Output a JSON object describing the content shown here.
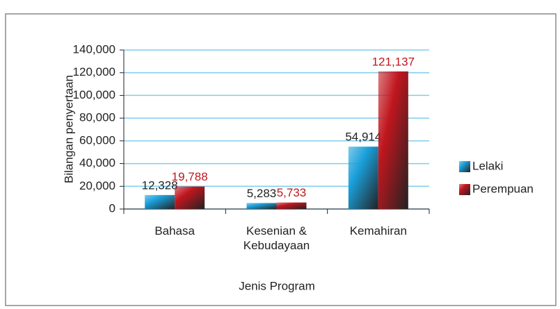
{
  "chart_data": {
    "type": "bar",
    "categories": [
      "Bahasa",
      "Kesenian & Kebudayaan",
      "Kemahiran"
    ],
    "series": [
      {
        "name": "Lelaki",
        "color": "#1a9fd9",
        "values": [
          12328,
          5283,
          54914
        ],
        "value_labels": [
          "12,328",
          "5,283",
          "54,914"
        ]
      },
      {
        "name": "Perempuan",
        "color": "#c0161e",
        "values": [
          19788,
          5733,
          121137
        ],
        "value_labels": [
          "19,788",
          "5,733",
          "121,137"
        ]
      }
    ],
    "y_label": "Bilangan penyertaan",
    "x_label": "Jenis Program",
    "ylim": [
      0,
      140000
    ],
    "yticks": [
      0,
      {
        "value": 20000,
        "label": "20,000"
      },
      {
        "value": 40000,
        "label": "40,000"
      },
      {
        "value": 60000,
        "label": "60,000"
      },
      {
        "value": 80000,
        "label": "80,000"
      },
      {
        "value": 100000,
        "label": "100,000"
      },
      {
        "value": 120000,
        "label": "120,000"
      },
      {
        "value": 140000,
        "label": "140,000"
      }
    ],
    "grid": true,
    "legend": "right"
  }
}
